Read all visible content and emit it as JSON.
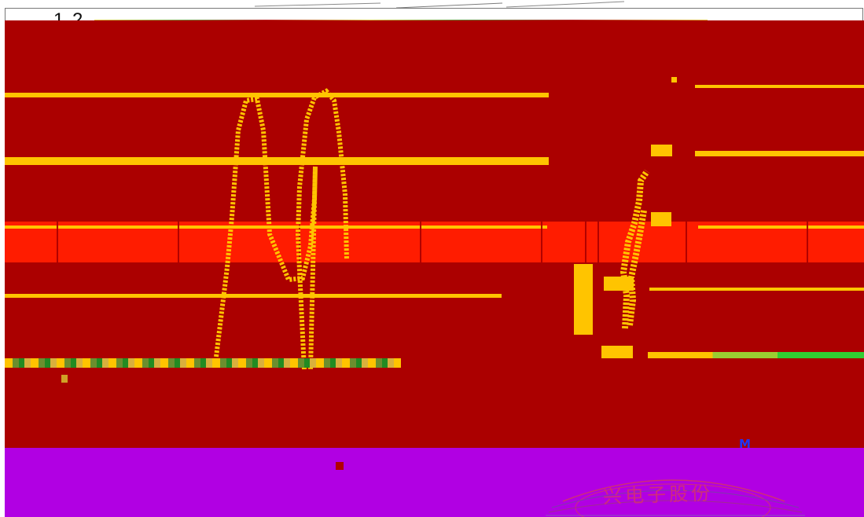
{
  "document": {
    "header_number": "1 2",
    "seal_text": "兴电子股份",
    "stray_mark": "M"
  }
}
